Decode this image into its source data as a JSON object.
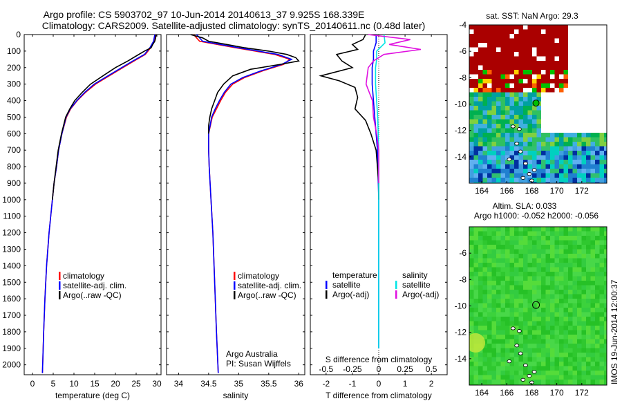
{
  "title_line1": "Argo profile: CS 5903702_97 10-Jun-2014 20140613_37 9.925S 168.339E",
  "title_line2": "Climatology: CARS2009. Satellite-adjusted climatology: synTS_20140611.nc (0.48d later)",
  "footer": {
    "agency": "Argo Australia",
    "pi": "PI: Susan Wijffels",
    "imos": "IMOS 19-Jun-2014 12:00:37"
  },
  "colors": {
    "climatology": "#ff0000",
    "satellite": "#0000ff",
    "argo": "#000000",
    "sal_satellite": "#00e5e5",
    "sal_argo": "#e010e0"
  },
  "chart_data": [
    {
      "type": "line",
      "name": "temperature-profile",
      "xlabel": "temperature (deg C)",
      "ylabel": "",
      "xlim": [
        -2,
        31
      ],
      "ylim": [
        2060,
        0
      ],
      "xticks": [
        0,
        5,
        10,
        15,
        20,
        25,
        30
      ],
      "yticks": [
        0,
        100,
        200,
        300,
        400,
        500,
        600,
        700,
        800,
        900,
        1000,
        1100,
        1200,
        1300,
        1400,
        1500,
        1600,
        1700,
        1800,
        1900,
        2000
      ],
      "legend": [
        "climatology",
        "satellite-adj. clim.",
        "Argo(..raw -QC)"
      ],
      "legend_position": "lower-center",
      "series": [
        {
          "name": "climatology",
          "depth": [
            0,
            40,
            80,
            120,
            160,
            200,
            250,
            300,
            350,
            400,
            450,
            500,
            600,
            700,
            800,
            900,
            1000,
            1200,
            1400,
            1600,
            1800,
            2050
          ],
          "values": [
            29.6,
            29.3,
            28.5,
            27.2,
            24.5,
            21.8,
            18.5,
            15.2,
            12.8,
            10.8,
            9.2,
            8.2,
            7.1,
            6.3,
            5.8,
            5.2,
            4.8,
            4.0,
            3.4,
            3.0,
            2.7,
            2.4
          ]
        },
        {
          "name": "satellite-adj. clim.",
          "depth": [
            0,
            40,
            80,
            120,
            160,
            200,
            250,
            300,
            350,
            400,
            450,
            500,
            600,
            700,
            800,
            900,
            1000,
            1200,
            1400,
            1600,
            1800,
            2050
          ],
          "values": [
            29.5,
            29.2,
            28.3,
            27.0,
            24.2,
            21.5,
            18.2,
            14.9,
            12.6,
            10.7,
            9.1,
            8.1,
            7.1,
            6.3,
            5.8,
            5.2,
            4.8,
            4.0,
            3.4,
            3.0,
            2.7,
            2.4
          ]
        },
        {
          "name": "Argo(..raw -QC)",
          "depth": [
            0,
            20,
            40,
            60,
            80,
            100,
            130,
            160,
            200,
            250,
            300,
            350,
            400,
            450,
            500,
            600,
            700,
            800,
            900,
            1000
          ],
          "values": [
            29.8,
            29.7,
            29.5,
            29.0,
            28.6,
            27.0,
            25.0,
            23.0,
            20.0,
            17.0,
            14.0,
            12.0,
            10.2,
            9.0,
            8.0,
            7.0,
            6.2,
            5.7,
            5.2,
            4.8
          ]
        }
      ]
    },
    {
      "type": "line",
      "name": "salinity-profile",
      "xlabel": "salinity",
      "xlim": [
        33.8,
        36.1
      ],
      "ylim": [
        2060,
        0
      ],
      "xticks": [
        34,
        34.5,
        35,
        35.5,
        36
      ],
      "legend": [
        "climatology",
        "satellite-adj. clim.",
        "Argo(..raw -QC)"
      ],
      "legend_position": "lower-center",
      "series": [
        {
          "name": "climatology",
          "depth": [
            0,
            40,
            80,
            120,
            150,
            180,
            220,
            260,
            300,
            350,
            400,
            450,
            500,
            600,
            700,
            800,
            1000,
            1200,
            1500,
            1800,
            2050
          ],
          "values": [
            34.25,
            34.35,
            34.95,
            35.6,
            35.85,
            35.75,
            35.4,
            35.1,
            34.9,
            34.78,
            34.7,
            34.63,
            34.56,
            34.5,
            34.5,
            34.51,
            34.54,
            34.57,
            34.6,
            34.63,
            34.66
          ]
        },
        {
          "name": "satellite-adj. clim.",
          "depth": [
            0,
            40,
            80,
            120,
            150,
            180,
            220,
            260,
            300,
            350,
            400,
            450,
            500,
            600,
            700,
            800,
            1000,
            1200,
            1500,
            1800,
            2050
          ],
          "values": [
            34.3,
            34.4,
            35.0,
            35.65,
            35.88,
            35.72,
            35.37,
            35.07,
            34.87,
            34.76,
            34.68,
            34.61,
            34.55,
            34.5,
            34.5,
            34.51,
            34.54,
            34.57,
            34.6,
            34.63,
            34.66
          ]
        },
        {
          "name": "Argo(..raw -QC)",
          "depth": [
            0,
            20,
            40,
            60,
            80,
            100,
            120,
            140,
            160,
            180,
            210,
            250,
            300,
            350,
            400,
            450,
            500,
            550,
            600
          ],
          "values": [
            34.2,
            34.4,
            34.5,
            34.8,
            35.1,
            35.5,
            35.8,
            35.95,
            36.0,
            35.7,
            35.2,
            34.9,
            34.75,
            34.65,
            34.6,
            34.55,
            34.52,
            34.5,
            34.5
          ]
        }
      ]
    },
    {
      "type": "line",
      "name": "difference-profile",
      "xlabel": "T difference from climatology",
      "xlabel_top": "S difference from climatology",
      "xlim": [
        -2.6,
        2.6
      ],
      "ylim": [
        2060,
        0
      ],
      "xticks": [
        -2,
        -1,
        0,
        1,
        2
      ],
      "xticks_s": [
        -0.5,
        -0.25,
        0,
        0.25,
        0.5
      ],
      "legend_headers": [
        "temperature",
        "salinity"
      ],
      "legend": [
        "satellite",
        "Argo(-adj)",
        "satellite",
        "Argo(-adj)"
      ],
      "legend_position": "lower-center",
      "series": [
        {
          "name": "temperature satellite",
          "depth": [
            0,
            50,
            100,
            150,
            200,
            300,
            500,
            700,
            1000,
            1500,
            1900
          ],
          "values": [
            -0.1,
            -0.1,
            -0.2,
            -0.2,
            -0.25,
            -0.25,
            -0.15,
            -0.05,
            0.0,
            0.0,
            0.0
          ]
        },
        {
          "name": "temperature Argo(-adj)",
          "depth": [
            0,
            30,
            60,
            90,
            120,
            160,
            200,
            250,
            280,
            320,
            380,
            450,
            520,
            600,
            700,
            900,
            1000
          ],
          "values": [
            -0.5,
            -0.6,
            -1.0,
            -0.8,
            -1.6,
            -1.4,
            -1.0,
            -2.2,
            -1.5,
            -0.9,
            -0.8,
            -0.9,
            -0.5,
            -0.3,
            -0.1,
            0.0,
            0.0
          ]
        },
        {
          "name": "salinity satellite",
          "depth": [
            0,
            50,
            100,
            150,
            200,
            300,
            500,
            700,
            1000,
            1500,
            1900
          ],
          "values": [
            0.05,
            0.06,
            -0.02,
            -0.02,
            -0.03,
            -0.03,
            -0.01,
            0.0,
            0.0,
            0.0,
            0.0
          ]
        },
        {
          "name": "salinity Argo(-adj)",
          "depth": [
            0,
            30,
            60,
            90,
            120,
            160,
            200,
            300,
            400,
            500,
            600,
            700,
            900
          ],
          "values": [
            -0.1,
            0.3,
            0.1,
            0.4,
            0.05,
            -0.05,
            -0.1,
            -0.12,
            -0.06,
            -0.05,
            -0.02,
            0.0,
            0.0
          ]
        }
      ]
    },
    {
      "type": "heatmap",
      "name": "sst-map",
      "title": "sat. SST: NaN Argo: 29.3",
      "xlim": [
        163,
        174
      ],
      "ylim": [
        -16,
        -4
      ],
      "xticks": [
        164,
        166,
        168,
        170,
        172
      ],
      "yticks": [
        -4,
        -6,
        -8,
        -10,
        -12,
        -14
      ],
      "argo_position": {
        "lon": 168.339,
        "lat": -9.925
      }
    },
    {
      "type": "heatmap",
      "name": "sla-map",
      "title": "Altim. SLA: 0.033",
      "subtitle": "Argo h1000: -0.052 h2000: -0.056",
      "xlim": [
        163,
        174
      ],
      "ylim": [
        -16,
        -4
      ],
      "xticks": [
        164,
        166,
        168,
        170,
        172
      ],
      "yticks": [
        -6,
        -8,
        -10,
        -12,
        -14
      ],
      "argo_position": {
        "lon": 168.339,
        "lat": -9.925
      }
    }
  ]
}
